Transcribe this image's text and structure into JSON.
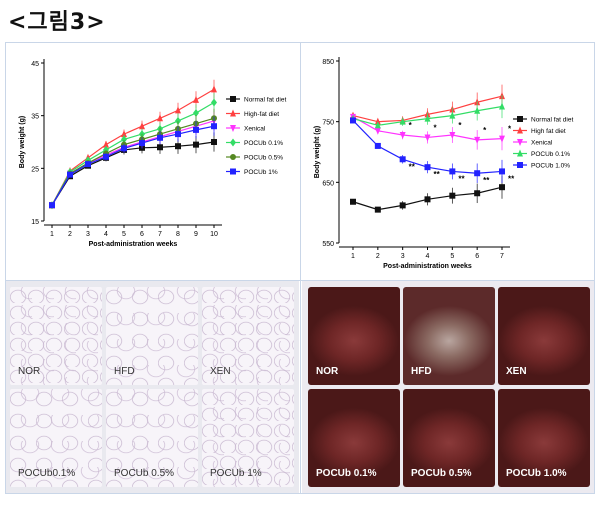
{
  "figure_title": "<그림3>",
  "chart_data": [
    {
      "type": "line",
      "xlabel": "Post-administration weeks",
      "ylabel": "Body weight (g)",
      "x": [
        1,
        2,
        3,
        4,
        5,
        6,
        7,
        8,
        9,
        10
      ],
      "ylim": [
        15,
        45
      ],
      "yticks": [
        15,
        25,
        35,
        45
      ],
      "legend_position": "right",
      "series": [
        {
          "name": "Normal fat diet",
          "color": "#111111",
          "marker": "square",
          "values": [
            18.0,
            23.5,
            25.5,
            27.0,
            28.5,
            28.9,
            29.0,
            29.2,
            29.5,
            30.0
          ]
        },
        {
          "name": "High-fat diet",
          "color": "#ff4040",
          "marker": "triangle",
          "values": [
            18.0,
            24.5,
            27.0,
            29.5,
            31.5,
            33.0,
            34.5,
            36.0,
            38.0,
            40.0
          ]
        },
        {
          "name": "Xenical",
          "color": "#ff33ff",
          "marker": "triangle-down",
          "values": [
            18.0,
            24.0,
            26.0,
            27.5,
            29.0,
            30.0,
            31.0,
            32.0,
            33.0,
            34.0
          ]
        },
        {
          "name": "POCUb 0.1%",
          "color": "#33dd66",
          "marker": "diamond",
          "values": [
            18.0,
            24.3,
            26.5,
            28.5,
            30.5,
            31.5,
            32.5,
            34.0,
            35.5,
            37.5
          ]
        },
        {
          "name": "POCUb 0.5%",
          "color": "#558822",
          "marker": "circle",
          "values": [
            18.0,
            24.0,
            26.0,
            27.8,
            29.5,
            30.5,
            31.5,
            32.5,
            33.5,
            34.5
          ]
        },
        {
          "name": "POCUb 1%",
          "color": "#2222ff",
          "marker": "square",
          "values": [
            18.0,
            23.8,
            25.8,
            27.2,
            28.8,
            29.8,
            30.8,
            31.5,
            32.3,
            33.0
          ]
        }
      ]
    },
    {
      "type": "line",
      "xlabel": "Post-administration weeks",
      "ylabel": "Body weight (g)",
      "x": [
        1,
        2,
        3,
        4,
        5,
        6,
        7
      ],
      "ylim": [
        550,
        850
      ],
      "yticks": [
        550,
        650,
        750,
        850
      ],
      "legend_position": "right",
      "series": [
        {
          "name": "Normal fat diet",
          "color": "#111111",
          "marker": "square",
          "values": [
            618,
            605,
            612,
            622,
            628,
            632,
            642
          ]
        },
        {
          "name": "High fat diet",
          "color": "#ff4040",
          "marker": "triangle",
          "values": [
            760,
            750,
            752,
            762,
            770,
            782,
            792
          ]
        },
        {
          "name": "Xenical",
          "color": "#ff33ff",
          "marker": "triangle-down",
          "values": [
            758,
            735,
            728,
            724,
            728,
            720,
            722
          ]
        },
        {
          "name": "POCUb 0.1%",
          "color": "#33dd66",
          "marker": "triangle",
          "values": [
            755,
            744,
            750,
            755,
            760,
            768,
            775
          ]
        },
        {
          "name": "POCUb 1.0%",
          "color": "#2222ff",
          "marker": "square",
          "values": [
            752,
            710,
            688,
            675,
            668,
            665,
            668
          ]
        }
      ],
      "annotations": [
        {
          "x": 3,
          "y": 728,
          "text": "*"
        },
        {
          "x": 4,
          "y": 724,
          "text": "*"
        },
        {
          "x": 5,
          "y": 728,
          "text": "*"
        },
        {
          "x": 6,
          "y": 720,
          "text": "*"
        },
        {
          "x": 7,
          "y": 722,
          "text": "*"
        },
        {
          "x": 3,
          "y": 688,
          "text": "**"
        },
        {
          "x": 4,
          "y": 675,
          "text": "**"
        },
        {
          "x": 5,
          "y": 668,
          "text": "**"
        },
        {
          "x": 6,
          "y": 665,
          "text": "**"
        },
        {
          "x": 7,
          "y": 668,
          "text": "**"
        }
      ]
    }
  ],
  "histology": {
    "labels": [
      "NOR",
      "HFD",
      "XEN",
      "POCUb0.1%",
      "POCUb 0.5%",
      "POCUb 1%"
    ]
  },
  "gross": {
    "labels": [
      "NOR",
      "HFD",
      "XEN",
      "POCUb 0.1%",
      "POCUb 0.5%",
      "POCUb 1.0%"
    ]
  }
}
